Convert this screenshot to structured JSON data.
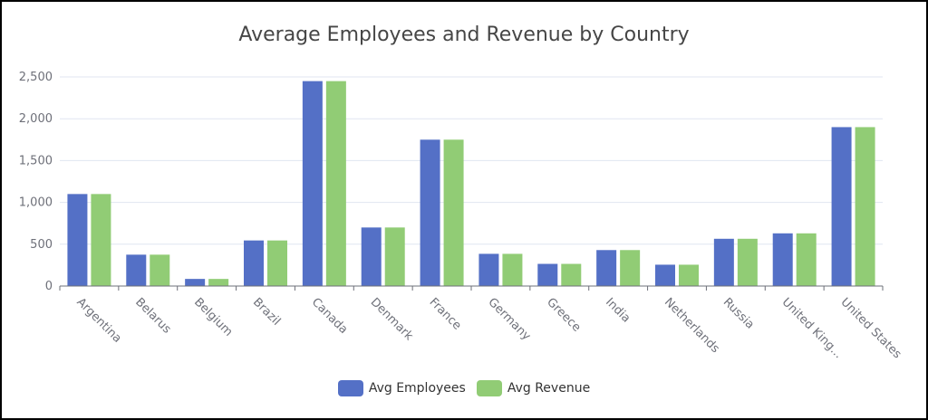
{
  "chart_data": {
    "type": "bar",
    "title": "Average Employees and Revenue by Country",
    "categories": [
      "Argentina",
      "Belarus",
      "Belgium",
      "Brazil",
      "Canada",
      "Denmark",
      "France",
      "Germany",
      "Greece",
      "India",
      "Netherlands",
      "Russia",
      "United King...",
      "United States"
    ],
    "series": [
      {
        "name": "Avg Employees",
        "color": "#5470c6",
        "values": [
          1100,
          375,
          85,
          545,
          2450,
          700,
          1750,
          385,
          265,
          430,
          255,
          565,
          630,
          1900
        ]
      },
      {
        "name": "Avg Revenue",
        "color": "#91cc75",
        "values": [
          1100,
          375,
          85,
          545,
          2450,
          700,
          1750,
          385,
          265,
          430,
          255,
          565,
          630,
          1900
        ]
      }
    ],
    "xlabel": "",
    "ylabel": "",
    "ylim": [
      0,
      2500
    ],
    "yticks": [
      "0",
      "500",
      "1,000",
      "1,500",
      "2,000",
      "2,500"
    ],
    "ytick_values": [
      0,
      500,
      1000,
      1500,
      2000,
      2500
    ],
    "grid": true,
    "legend": "bottom-center"
  }
}
